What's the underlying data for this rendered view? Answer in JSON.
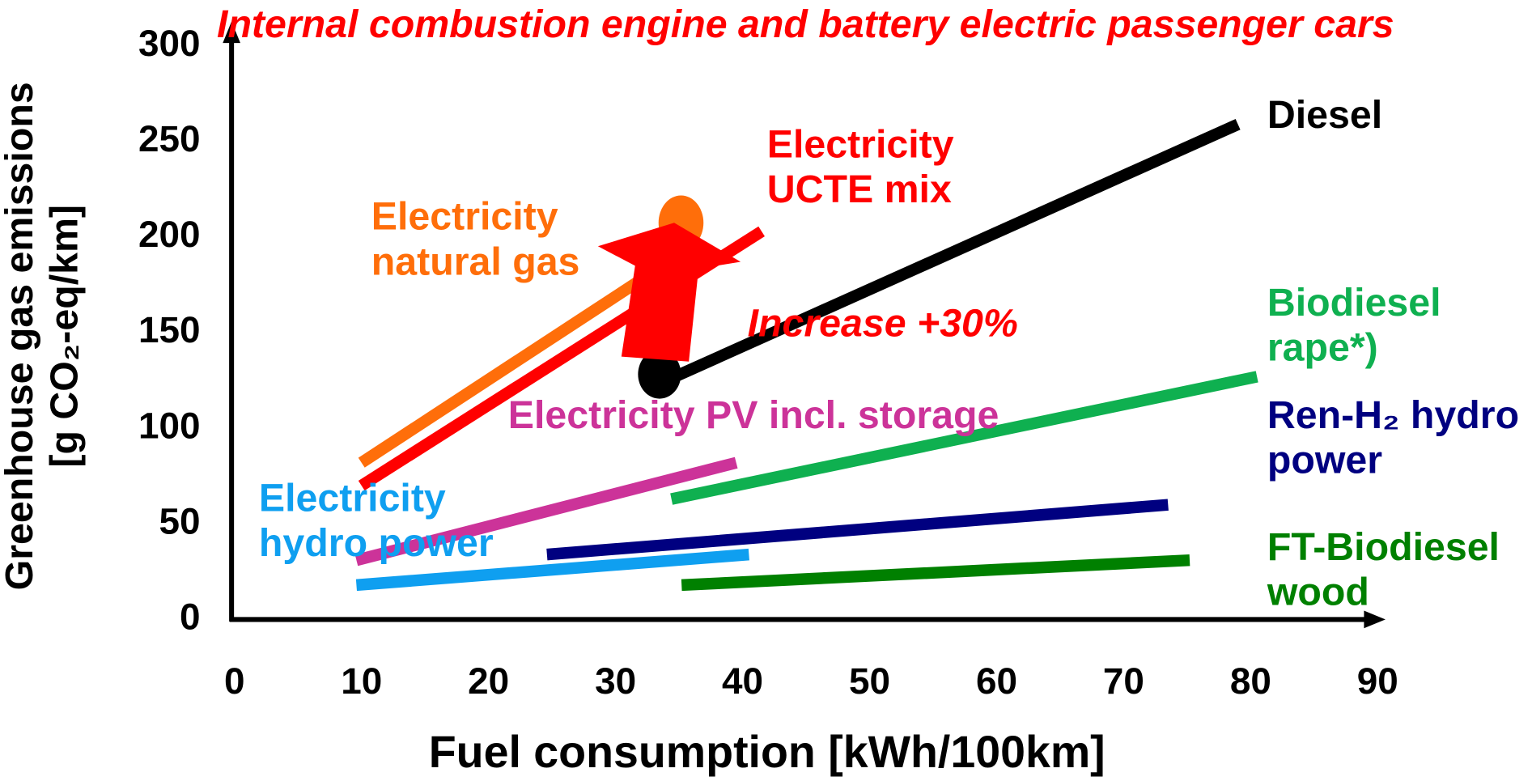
{
  "chart_data": {
    "type": "line",
    "title": "Internal combustion engine and battery electric passenger cars",
    "x_label": "Fuel consumption [kWh/100km]",
    "y_label": "Greenhouse gas emissions [g CO₂-eq/km]",
    "annotation": "Increase +30%",
    "xlim": [
      0,
      90
    ],
    "xticks": [
      0,
      10,
      20,
      30,
      40,
      50,
      60,
      70,
      80,
      90
    ],
    "ylim": [
      0,
      300
    ],
    "yticks": [
      0,
      50,
      100,
      150,
      200,
      250,
      300
    ],
    "grid": false,
    "series": [
      {
        "name": "Diesel",
        "color": "#000000",
        "x": [
          34,
          79
        ],
        "values": [
          125,
          259
        ]
      },
      {
        "name": "Electricity UCTE mix",
        "color": "#ff0000",
        "x": [
          10,
          41.5
        ],
        "values": [
          70,
          203
        ]
      },
      {
        "name": "Electricity natural gas",
        "color": "#ff6e0a",
        "x": [
          10,
          33
        ],
        "values": [
          82,
          182
        ]
      },
      {
        "name": "Electricity PV incl. storage",
        "color": "#cc3399",
        "x": [
          9.6,
          39.5
        ],
        "values": [
          31,
          82
        ]
      },
      {
        "name": "Electricity hydro power",
        "color": "#0f9ff0",
        "x": [
          9.6,
          40.5
        ],
        "values": [
          18,
          34
        ]
      },
      {
        "name": "Biodiesel rape*)",
        "color": "#0fb050",
        "x": [
          34.4,
          80.5
        ],
        "values": [
          63,
          127
        ]
      },
      {
        "name": "Ren-H₂ hydro power",
        "color": "#000080",
        "x": [
          24.6,
          73.5
        ],
        "values": [
          34,
          60
        ]
      },
      {
        "name": "FT-Biodiesel wood",
        "color": "#008000",
        "x": [
          35.2,
          75.2
        ],
        "values": [
          18,
          31
        ]
      }
    ]
  }
}
